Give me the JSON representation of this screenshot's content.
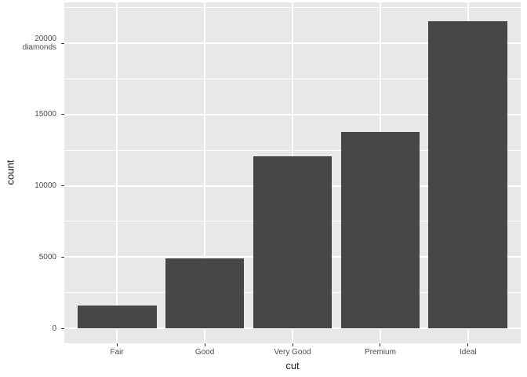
{
  "chart_data": {
    "type": "bar",
    "title": "",
    "xlabel": "cut",
    "ylabel": "count",
    "categories": [
      "Fair",
      "Good",
      "Very Good",
      "Premium",
      "Ideal"
    ],
    "values": [
      1610,
      4906,
      12082,
      13791,
      21551
    ],
    "ylim": [
      0,
      22629
    ],
    "grid": true,
    "legend": "none",
    "y_ticks": [
      {
        "value": 0,
        "label": "0"
      },
      {
        "value": 5000,
        "label": "5000"
      },
      {
        "value": 10000,
        "label": "10000"
      },
      {
        "value": 15000,
        "label": "15000"
      },
      {
        "value": 20000,
        "label": "20000",
        "label2": "diamonds"
      }
    ],
    "y_minor_ticks": [
      2500,
      7500,
      12500,
      17500,
      22500
    ],
    "colors": {
      "bar": "#474747",
      "panel_bg": "#E8E8E8",
      "grid": "#FFFFFF",
      "tick_text": "#4D4D4D",
      "title_text": "#1A1A1A",
      "tick_mark": "#333333",
      "background": "#FFFFFF"
    }
  }
}
